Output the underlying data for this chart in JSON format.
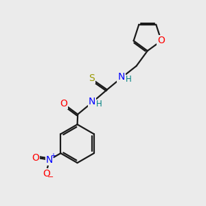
{
  "background_color": "#ebebeb",
  "bond_color": "#1a1a1a",
  "bond_width": 1.6,
  "atom_colors": {
    "O": "#ff0000",
    "N": "#0000ff",
    "S": "#999900",
    "H": "#008080",
    "C": "#1a1a1a"
  },
  "font_size_atoms": 10,
  "font_size_h": 8.5
}
